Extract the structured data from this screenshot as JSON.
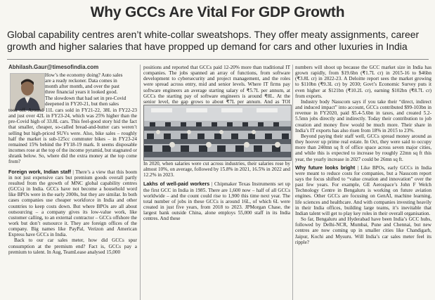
{
  "headline": "Why GCCs Are Vital For GDP Growth",
  "deck": [
    "Global capability centres aren’t white-collar sweatshops. They offer meaty assignments, career",
    "growth and higher salaries that have propped up demand for cars and other luxuries in India"
  ],
  "byline": "Abhilash.Gaur@timesofindia.com",
  "col1": {
    "intro_wrap": [
      "How’s the economy doing? Auto sales",
      "are a ready reckoner. Data comes in",
      "month after month, and over the past",
      "three financial years it looked good.",
      "The slowdown that had set in pre-Covid",
      "deepened in FY20-21, but then sales"
    ],
    "intro_full": "took off. Around 11L cars sold in FY21-22, 38L in FY22-23 and just over 42L in FY23-24, which was 25% higher than the pre-Covid high of 33.8L cars. This feel-good story hid the fact that smaller, cheaper, so-called bread-and-butter cars weren’t selling but high-priced SUVs were. Also, bike sales – roughly half the market is sub-125cc commuter bikes – in FY23-24 remained 15% behind the FY18-19 mark. It seems disposable incomes rose at the top of the income pyramid, but stagnated or shrank below. So, where did the extra money at the top come from?",
    "subhead1": "Foreign work, Indian staff",
    "para1": "There’s a view that this boom in not just expensive cars but premium goods overall partly resulted from the growth of MNC global capability centres (GCCs) in India. GCCs have not become a household word like BPOs were in the early 2000s, but they are similar. In both cases companies use cheaper workforce in India and other countries to keep costs down. But where BPOs are all about outsourcing – a company gives its low-value work, like customer calling, to an external contractor – GCCs offshore the work but don’t outsource it. They are foreign offices of the company. Big names like PayPal, Verizon and American Express have GCCs in India.",
    "para2": "Back to our car sales meter, how did GCCs spur consumption at the premium end? Fact is, GCCs pay a premium to talent. In Aug, TeamLease analysed 15,000"
  },
  "col2": {
    "para1": "positions and reported that GCCs paid 12-20% more than traditional IT companies. The jobs spanned an array of functions, from software development to cybersecurity and project management, and the roles were spread across entry, mid and senior levels. Where IT firms pay software engineers an average starting salary of ₹5.7L per annum, at GCCs the starting pay of software engineers is around ₹8L. At the senior level, the gap grows to about ₹7L per annum. And as TOI reported earlier, GCC employees have seen robust pay growth in recent years.",
    "para2": "In 2020, when salaries were cut across industries, their salaries rose by almost 10%, on average, followed by 15.8% in 2021, 16.5% in 2022 and 12.2% in 2023.",
    "subhead": "Lakhs of well-paid workers",
    "para3": "Chipmaker Texas Instruments set up the first GCC in India in 1985. There are 1,600 now – half of all GCCs worldwide – and the count could rise to 1,900 this time next year. The total number of jobs in these GCCs is around 16L, of which 6L were created in just five years, from 2018 to 2023. JPMorgan Chase, the largest bank outside China, alone employs 55,000 staff in its India centres. And these"
  },
  "col3": {
    "para1": "numbers will shoot up because the GCC market size in India has grown rapidly, from $19.6bn (₹1.7L cr) in 2015-16 to $46bn (₹3.8L cr) in 2022-23. A Deloitte report sees the market growing to $110bn (₹9.3L cr) by 2030; Govt’s Economic Survey puts it even higher at $121bn (₹10.2L cr), earning $102bn (₹8.7L cr) from exports.",
    "para2": "Industry body Nasscom says if you take their “direct, indirect and induced impact” into account, GCCs contributed $99-103bn in revenue in FY2020, paid $5.4-5.6bn in taxes, and created 5.2-5.5mn jobs directly and indirectly. Today their contribution to job creation and money flow would be much more. Their share in India’s IT exports has also risen from 18% in 2015 to 23%.",
    "para3": "Beyond paying their staff well, GCCs spread money around as they hoover up prime real estate. In Oct, they were said to occupy more than 240mn sq ft of office space across seven major cities, and while this is expected to increase by roughly 22mn sq ft this year, the yearly increase in 2027 could be 26mn sq ft.",
    "subhead": "Why future looks bright",
    "para4": "Like BPOs, early GCCs in India were meant to reduce costs for companies, but a Nasscom report says the focus shifted to “value creation and innovation” over the past few years. For example, GE Aerospace’s John F Welch Technology Centre in Bengaluru is working on future aviation engines. Other GCCs are focusing on GenAI, machine learning, life sciences and healthcare. And with companies investing heavily in their India offices, building large teams, it’s inevitable that Indian talent will get to play key roles in their overall organisation.",
    "para5": "So far, Bengaluru and Hyderabad have been India’s GCC hubs, followed by Delhi-NCR, Mumbai, Pune and Chennai, but new centres are now coming up in smaller cities like Chandigarh, Jaipur, Kochi and Mysuru. Will India’s car sales meter feel its ripple?"
  }
}
